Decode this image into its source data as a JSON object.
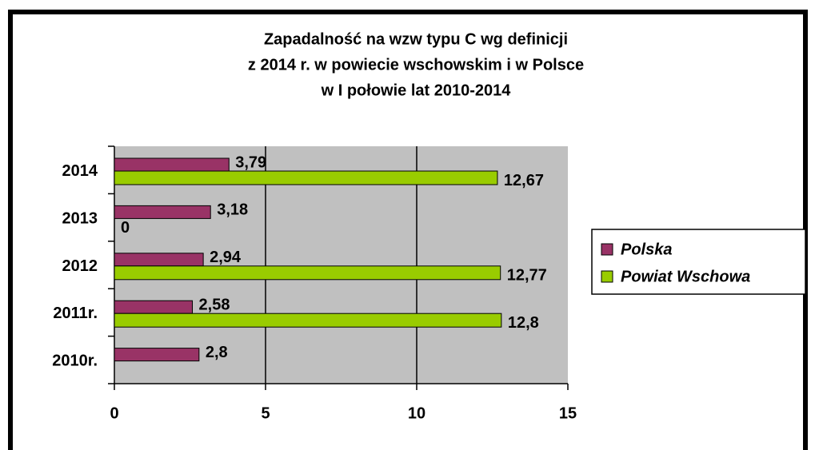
{
  "chart_data": {
    "type": "hbar",
    "title": [
      "Zapadalność na wzw typu C wg definicji",
      "z 2014 r. w powiecie wschowskim i w Polsce",
      "w I połowie lat 2010-2014"
    ],
    "categories": [
      "2014",
      "2013",
      "2012",
      "2011r.",
      "2010r."
    ],
    "series": [
      {
        "name": "Polska",
        "color": "#993366",
        "values": [
          3.79,
          3.18,
          2.94,
          2.58,
          2.8
        ],
        "value_labels": [
          "3,79",
          "3,18",
          "2,94",
          "2,58",
          "2,8"
        ]
      },
      {
        "name": "Powiat Wschowa",
        "color": "#99cc00",
        "values": [
          12.67,
          0,
          12.77,
          12.8,
          null
        ],
        "value_labels": [
          "12,67",
          "0",
          "12,77",
          "12,8",
          null
        ]
      }
    ],
    "xlim": [
      0,
      15
    ],
    "xticks": [
      0,
      5,
      10,
      15
    ],
    "grid": true,
    "legend": "right"
  }
}
